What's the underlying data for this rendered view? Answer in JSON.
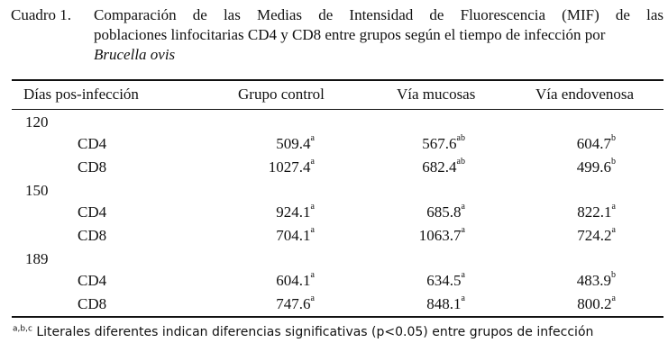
{
  "caption": {
    "number": "Cuadro 1.",
    "line1": "Comparación de las Medias de Intensidad de Fluorescencia (MIF) de las",
    "line2": "poblaciones linfocitarias CD4 y CD8 entre grupos según el tiempo de infección por",
    "species": "Brucella ovis"
  },
  "table": {
    "headers": [
      "Días pos-infección",
      "Grupo control",
      "Vía mucosas",
      "Vía endovenosa"
    ],
    "groups": [
      {
        "day": "120",
        "rows": [
          {
            "cell": "CD4",
            "values": [
              {
                "v": "509.4",
                "s": "a"
              },
              {
                "v": "567.6",
                "s": "ab"
              },
              {
                "v": "604.7",
                "s": "b"
              }
            ]
          },
          {
            "cell": "CD8",
            "values": [
              {
                "v": "1027.4",
                "s": "a"
              },
              {
                "v": "682.4",
                "s": "ab"
              },
              {
                "v": "499.6",
                "s": "b"
              }
            ]
          }
        ]
      },
      {
        "day": "150",
        "rows": [
          {
            "cell": "CD4",
            "values": [
              {
                "v": "924.1",
                "s": "a"
              },
              {
                "v": "685.8",
                "s": "a"
              },
              {
                "v": "822.1",
                "s": "a"
              }
            ]
          },
          {
            "cell": "CD8",
            "values": [
              {
                "v": "704.1",
                "s": "a"
              },
              {
                "v": "1063.7",
                "s": "a"
              },
              {
                "v": "724.2",
                "s": "a"
              }
            ]
          }
        ]
      },
      {
        "day": "189",
        "rows": [
          {
            "cell": "CD4",
            "values": [
              {
                "v": "604.1",
                "s": "a"
              },
              {
                "v": "634.5",
                "s": "a"
              },
              {
                "v": "483.9",
                "s": "b"
              }
            ]
          },
          {
            "cell": "CD8",
            "values": [
              {
                "v": "747.6",
                "s": "a"
              },
              {
                "v": "848.1",
                "s": "a"
              },
              {
                "v": "800.2",
                "s": "a"
              }
            ]
          }
        ]
      }
    ]
  },
  "footnote": {
    "marks": "a,b,c",
    "text": " Literales diferentes indican diferencias significativas (p<0.05) entre grupos de infección"
  }
}
